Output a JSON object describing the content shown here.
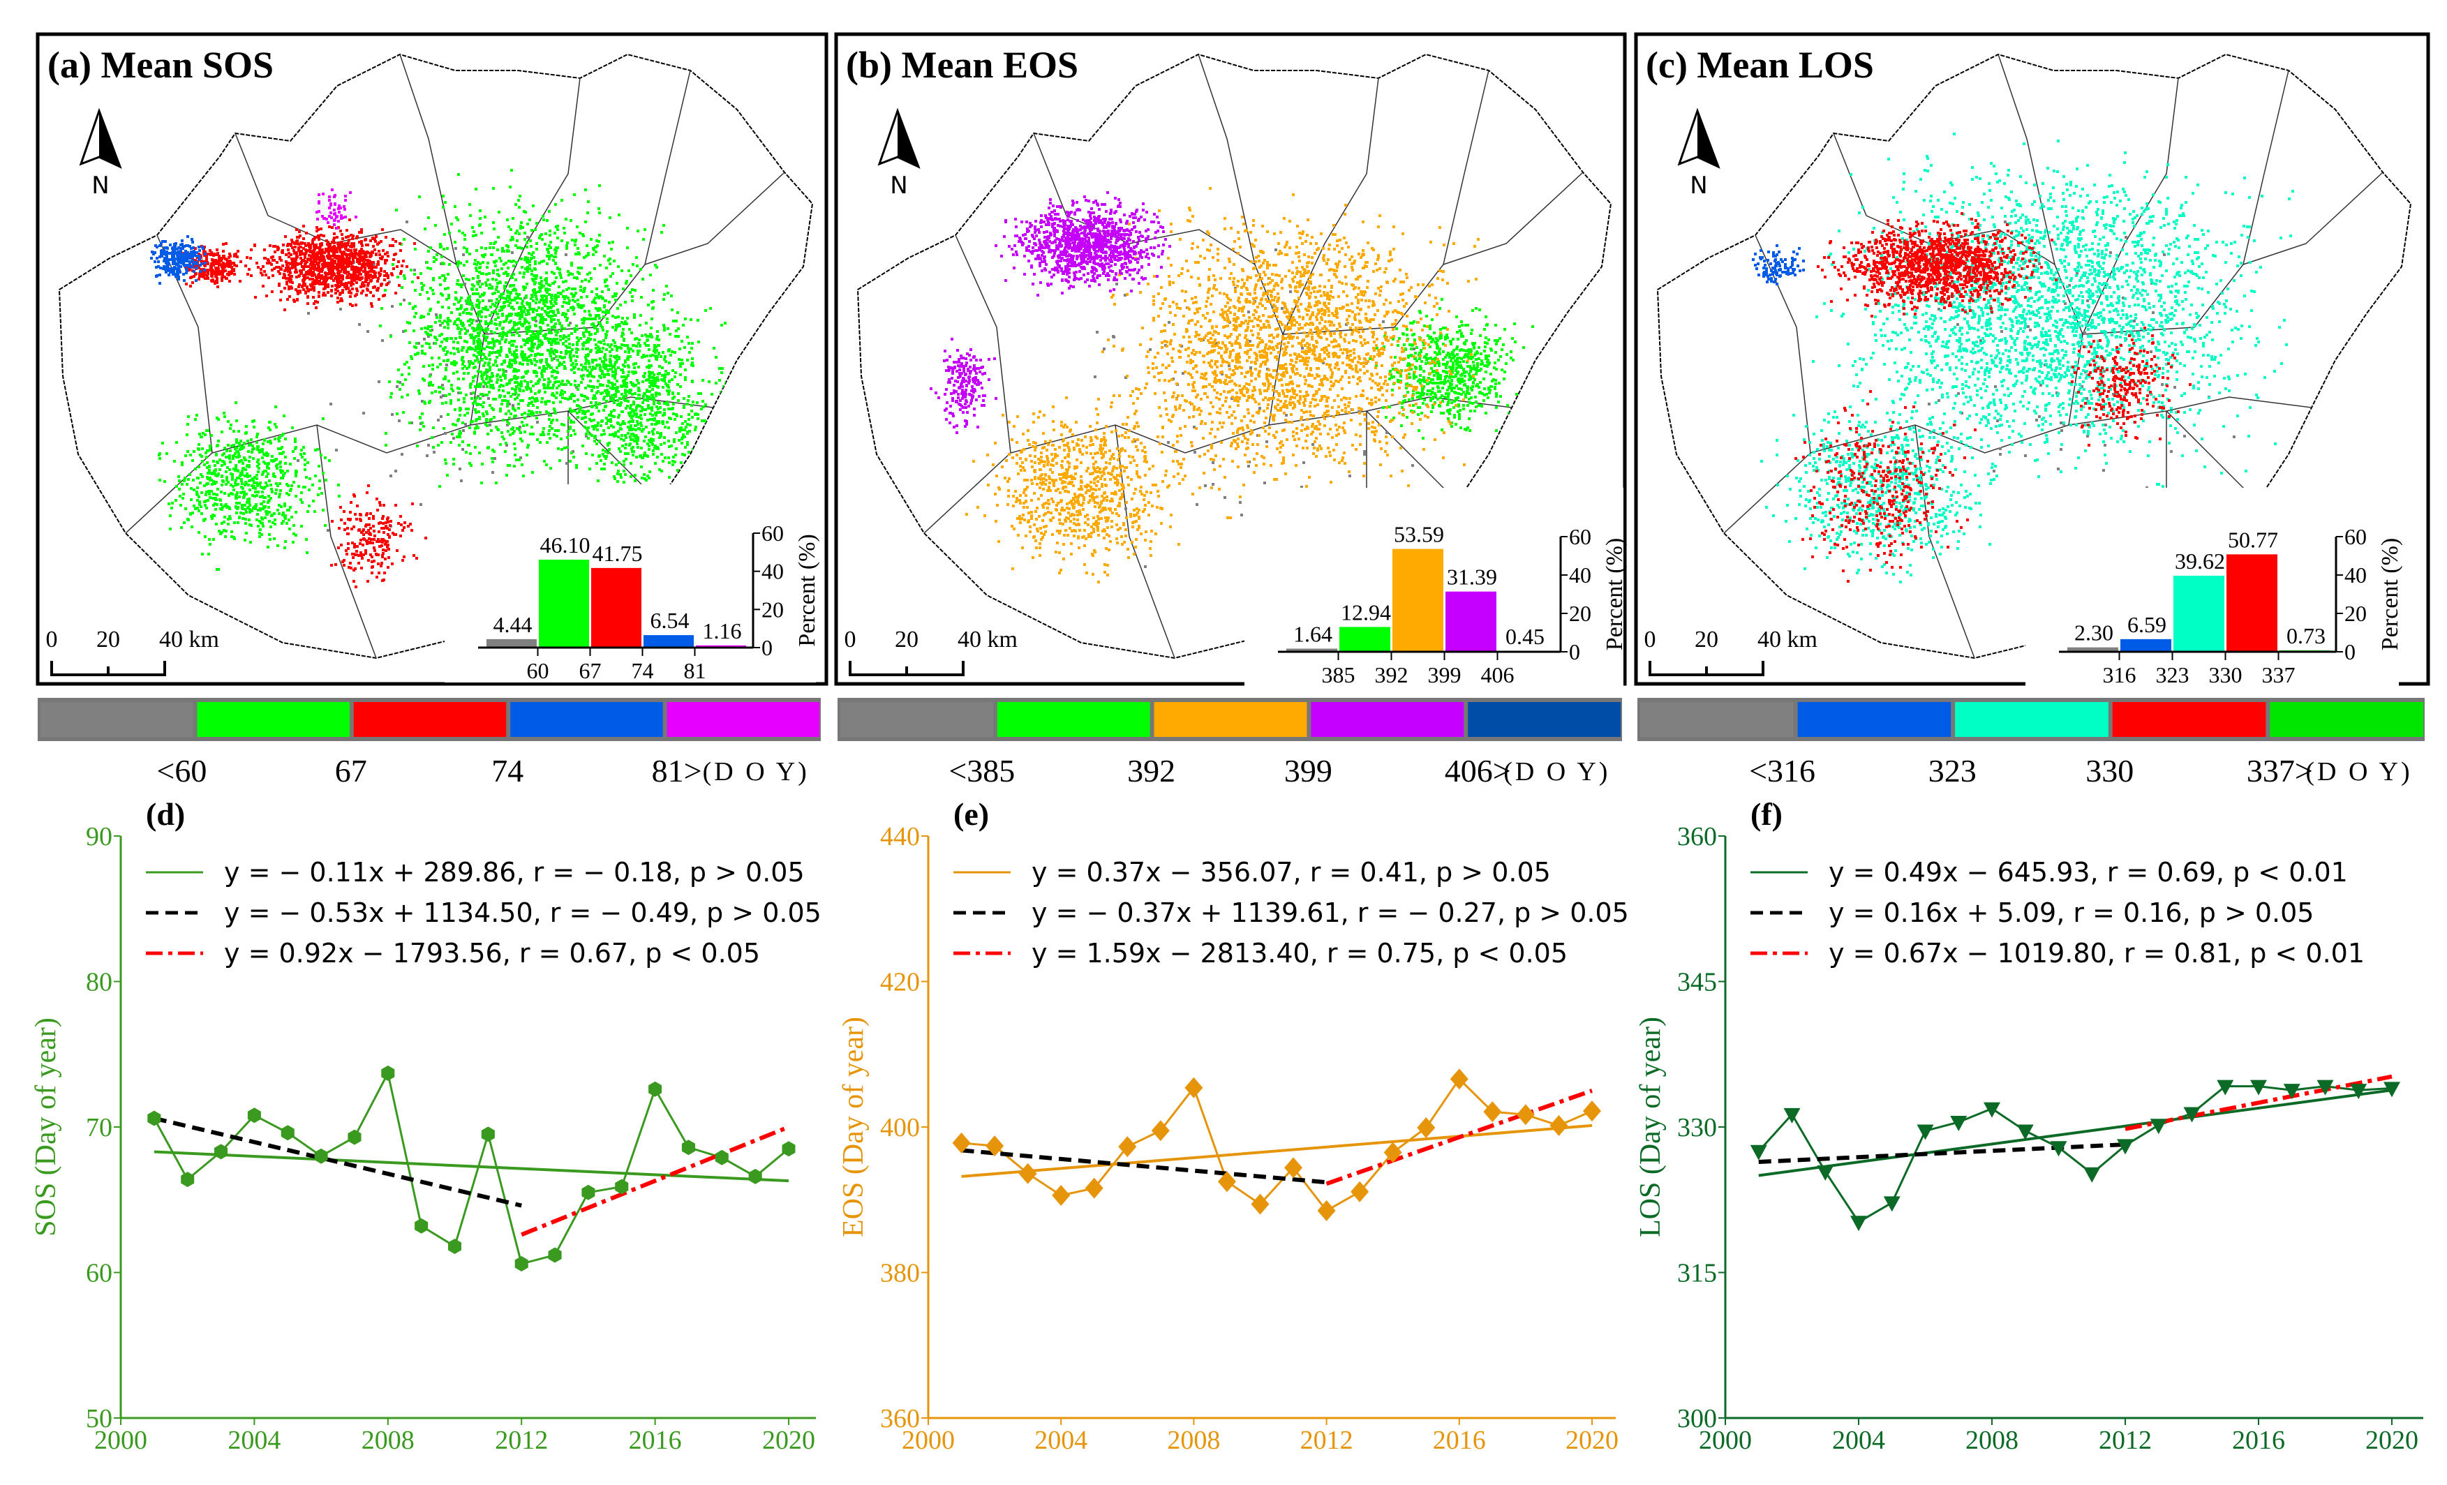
{
  "panels": [
    {
      "title": "(a) Mean SOS",
      "north": "N",
      "scale": {
        "labels": [
          "0",
          "20",
          "40 km"
        ]
      },
      "class_colors": [
        "#808080",
        "#00ff00",
        "#ff0000",
        "#005ce6",
        "#e600ff"
      ],
      "histogram": {
        "values": [
          4.44,
          46.1,
          41.75,
          6.54,
          1.16
        ],
        "value_labels": [
          "4.44",
          "46.10",
          "41.75",
          "6.54",
          "1.16"
        ],
        "tick_labels": [
          "60",
          "67",
          "74",
          "81"
        ],
        "y_ticks": [
          "0",
          "20",
          "40",
          "60"
        ],
        "ylabel": "Percent (%)"
      },
      "colorbar": {
        "labels": [
          "<60",
          "67",
          "74",
          "81>"
        ],
        "unit": "(D O Y)"
      }
    },
    {
      "title": "(b) Mean EOS",
      "north": "N",
      "scale": {
        "labels": [
          "0",
          "20",
          "40 km"
        ]
      },
      "class_colors": [
        "#808080",
        "#00ff00",
        "#ffaa00",
        "#c500ff",
        "#004da8"
      ],
      "histogram": {
        "values": [
          1.64,
          12.94,
          53.59,
          31.39,
          0.45
        ],
        "value_labels": [
          "1.64",
          "12.94",
          "53.59",
          "31.39",
          "0.45"
        ],
        "tick_labels": [
          "385",
          "392",
          "399",
          "406"
        ],
        "y_ticks": [
          "0",
          "20",
          "40",
          "60"
        ],
        "ylabel": "Percent (%)"
      },
      "colorbar": {
        "labels": [
          "<385",
          "392",
          "399",
          "406>"
        ],
        "unit": "(D O Y)"
      }
    },
    {
      "title": "(c) Mean LOS",
      "north": "N",
      "scale": {
        "labels": [
          "0",
          "20",
          "40 km"
        ]
      },
      "class_colors": [
        "#808080",
        "#005ce6",
        "#00ffc5",
        "#ff0000",
        "#00e600"
      ],
      "histogram": {
        "values": [
          2.3,
          6.59,
          39.62,
          50.77,
          0.73
        ],
        "value_labels": [
          "2.30",
          "6.59",
          "39.62",
          "50.77",
          "0.73"
        ],
        "tick_labels": [
          "316",
          "323",
          "330",
          "337"
        ],
        "y_ticks": [
          "0",
          "20",
          "40",
          "60"
        ],
        "ylabel": "Percent (%)"
      },
      "colorbar": {
        "labels": [
          "<316",
          "323",
          "330",
          "337>"
        ],
        "unit": "(D O Y)"
      }
    }
  ],
  "chart_data": [
    {
      "type": "line",
      "title": "(d)",
      "ylabel": "SOS (Day of year)",
      "xlabel": "",
      "color": "#3a9a1f",
      "marker": "hexagon",
      "xlim": [
        2000,
        2021
      ],
      "ylim": [
        50,
        90
      ],
      "xticks": [
        "2000",
        "2004",
        "2008",
        "2012",
        "2016",
        "2020"
      ],
      "yticks": [
        "50",
        "60",
        "70",
        "80",
        "90"
      ],
      "x": [
        2001,
        2002,
        2003,
        2004,
        2005,
        2006,
        2007,
        2008,
        2009,
        2010,
        2011,
        2012,
        2013,
        2014,
        2015,
        2016,
        2017,
        2018,
        2019,
        2020
      ],
      "values": [
        70.6,
        66.4,
        68.3,
        70.8,
        69.6,
        68.0,
        69.3,
        73.7,
        63.2,
        61.8,
        69.5,
        60.6,
        61.2,
        65.5,
        65.9,
        72.6,
        68.6,
        67.9,
        66.6,
        68.5
      ],
      "trends": [
        {
          "label": "y = − 0.11x + 289.86,  r = − 0.18,  p > 0.05",
          "style": "solid",
          "color": "#3a9a1f",
          "x": [
            2001,
            2020
          ],
          "y": [
            68.3,
            66.3
          ]
        },
        {
          "label": "y = − 0.53x + 1134.50,  r = − 0.49,  p > 0.05",
          "style": "dashed",
          "color": "#000000",
          "x": [
            2001,
            2012
          ],
          "y": [
            70.6,
            64.6
          ]
        },
        {
          "label": "y = 0.92x − 1793.56,  r = 0.67,  p < 0.05",
          "style": "dashdot",
          "color": "#ff0000",
          "x": [
            2012,
            2020
          ],
          "y": [
            62.6,
            70.0
          ]
        }
      ]
    },
    {
      "type": "line",
      "title": "(e)",
      "ylabel": "EOS (Day of year)",
      "xlabel": "",
      "color": "#e6950a",
      "marker": "diamond",
      "xlim": [
        2000,
        2021
      ],
      "ylim": [
        360,
        440
      ],
      "xticks": [
        "2000",
        "2004",
        "2008",
        "2012",
        "2016",
        "2020"
      ],
      "yticks": [
        "360",
        "380",
        "400",
        "420",
        "440"
      ],
      "x": [
        2001,
        2002,
        2003,
        2004,
        2005,
        2006,
        2007,
        2008,
        2009,
        2010,
        2011,
        2012,
        2013,
        2014,
        2015,
        2016,
        2017,
        2018,
        2019,
        2020
      ],
      "values": [
        397.8,
        397.4,
        393.6,
        390.6,
        391.6,
        397.3,
        399.5,
        405.4,
        392.5,
        389.4,
        394.4,
        388.5,
        391.1,
        396.5,
        399.9,
        406.6,
        402.1,
        401.7,
        400.2,
        402.2
      ],
      "trends": [
        {
          "label": "y = 0.37x − 356.07,  r = 0.41,  p > 0.05",
          "style": "solid",
          "color": "#e6950a",
          "x": [
            2001,
            2020
          ],
          "y": [
            393.2,
            400.2
          ]
        },
        {
          "label": "y = − 0.37x + 1139.61,  r = − 0.27,  p > 0.05",
          "style": "dashed",
          "color": "#000000",
          "x": [
            2001,
            2012
          ],
          "y": [
            396.8,
            392.4
          ]
        },
        {
          "label": "y = 1.59x − 2813.40,  r = 0.75,  p < 0.05",
          "style": "dashdot",
          "color": "#ff0000",
          "x": [
            2012,
            2020
          ],
          "y": [
            392.2,
            405.0
          ]
        }
      ]
    },
    {
      "type": "line",
      "title": "(f)",
      "ylabel": "LOS (Day of year)",
      "xlabel": "",
      "color": "#0b6a26",
      "marker": "triangle-down",
      "xlim": [
        2000,
        2021
      ],
      "ylim": [
        300,
        360
      ],
      "xticks": [
        "2000",
        "2004",
        "2008",
        "2012",
        "2016",
        "2020"
      ],
      "yticks": [
        "300",
        "315",
        "330",
        "345",
        "360"
      ],
      "x": [
        2001,
        2002,
        2003,
        2004,
        2005,
        2006,
        2007,
        2008,
        2009,
        2010,
        2011,
        2012,
        2013,
        2014,
        2015,
        2016,
        2017,
        2018,
        2019,
        2020
      ],
      "values": [
        327.5,
        331.3,
        325.4,
        320.2,
        322.2,
        329.6,
        330.5,
        331.9,
        329.6,
        327.9,
        325.2,
        328.1,
        330.2,
        331.4,
        334.2,
        334.2,
        333.8,
        334.2,
        333.8,
        334.0
      ],
      "trends": [
        {
          "label": "y = 0.49x − 645.93,  r = 0.69,  p < 0.01",
          "style": "solid",
          "color": "#0b6a26",
          "x": [
            2001,
            2020
          ],
          "y": [
            325.0,
            333.8
          ]
        },
        {
          "label": "y = 0.16x + 5.09,  r = 0.16,  p > 0.05",
          "style": "dashed",
          "color": "#000000",
          "x": [
            2001,
            2012
          ],
          "y": [
            326.4,
            328.2
          ]
        },
        {
          "label": "y = 0.67x − 1019.80,  r = 0.81,  p < 0.01",
          "style": "dashdot",
          "color": "#ff0000",
          "x": [
            2012,
            2020
          ],
          "y": [
            329.8,
            335.2
          ]
        }
      ]
    }
  ]
}
